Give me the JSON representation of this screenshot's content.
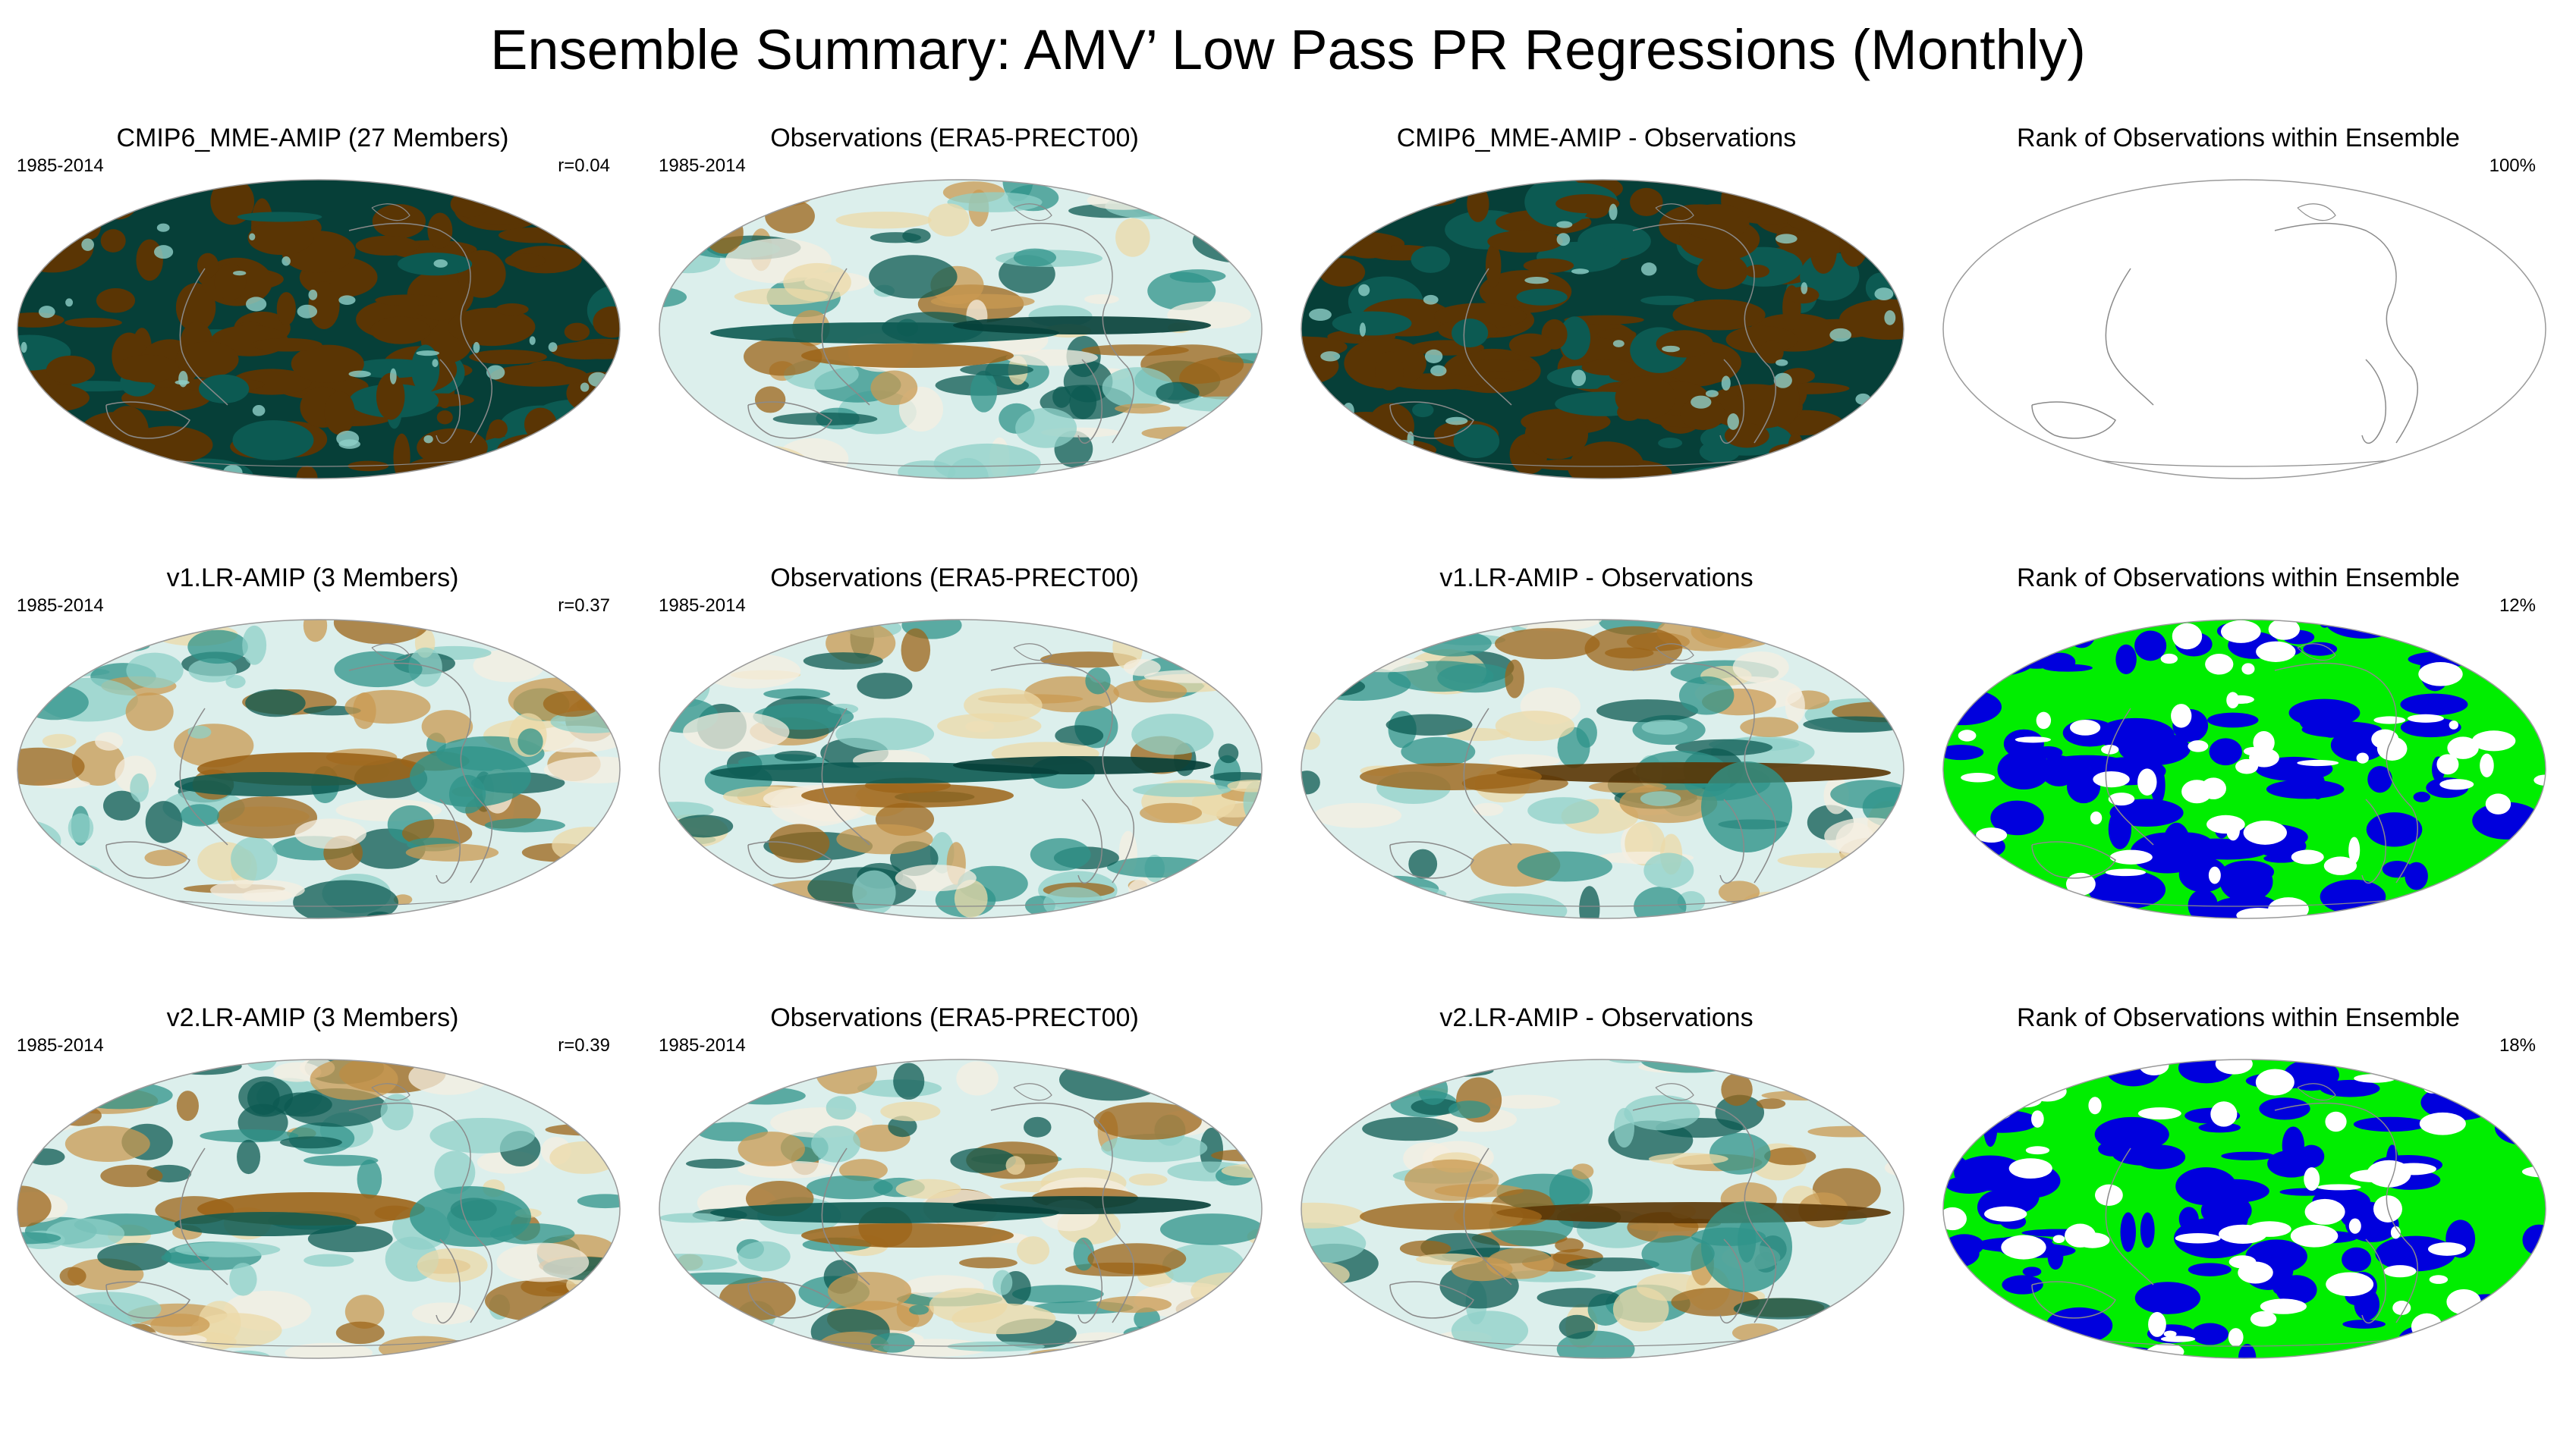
{
  "title": "Ensemble Summary: AMV’ Low Pass PR Regressions (Monthly)",
  "colors": {
    "brown_dark": "#5a3504",
    "brown": "#9c6418",
    "brown_mid": "#c99a52",
    "tan": "#ecd9a8",
    "cream": "#f6efe2",
    "aqua_light": "#dcefec",
    "aqua": "#8fd0c8",
    "teal": "#2f938a",
    "teal_dark": "#0c5a52",
    "teal_deep": "#063f38",
    "rank_green": "#00ee00",
    "rank_blue": "#0000dd",
    "coast": "#8a8a8a"
  },
  "rows": [
    {
      "model": {
        "title": "CMIP6_MME-AMIP (27 Members)",
        "period": "1985-2014",
        "corr": "r=0.04"
      },
      "obs": {
        "title": "Observations (ERA5-PRECT00)",
        "period": "1985-2014"
      },
      "diff": {
        "title": "CMIP6_MME-AMIP - Observations"
      },
      "rank": {
        "title": "Rank of Observations within Ensemble",
        "pct": "100%"
      }
    },
    {
      "model": {
        "title": "v1.LR-AMIP (3 Members)",
        "period": "1985-2014",
        "corr": "r=0.37"
      },
      "obs": {
        "title": "Observations (ERA5-PRECT00)",
        "period": "1985-2014"
      },
      "diff": {
        "title": "v1.LR-AMIP - Observations"
      },
      "rank": {
        "title": "Rank of Observations within Ensemble",
        "pct": "12%"
      }
    },
    {
      "model": {
        "title": "v2.LR-AMIP (3 Members)",
        "period": "1985-2014",
        "corr": "r=0.39"
      },
      "obs": {
        "title": "Observations (ERA5-PRECT00)",
        "period": "1985-2014"
      },
      "diff": {
        "title": "v2.LR-AMIP - Observations"
      },
      "rank": {
        "title": "Rank of Observations within Ensemble",
        "pct": "18%"
      }
    }
  ]
}
